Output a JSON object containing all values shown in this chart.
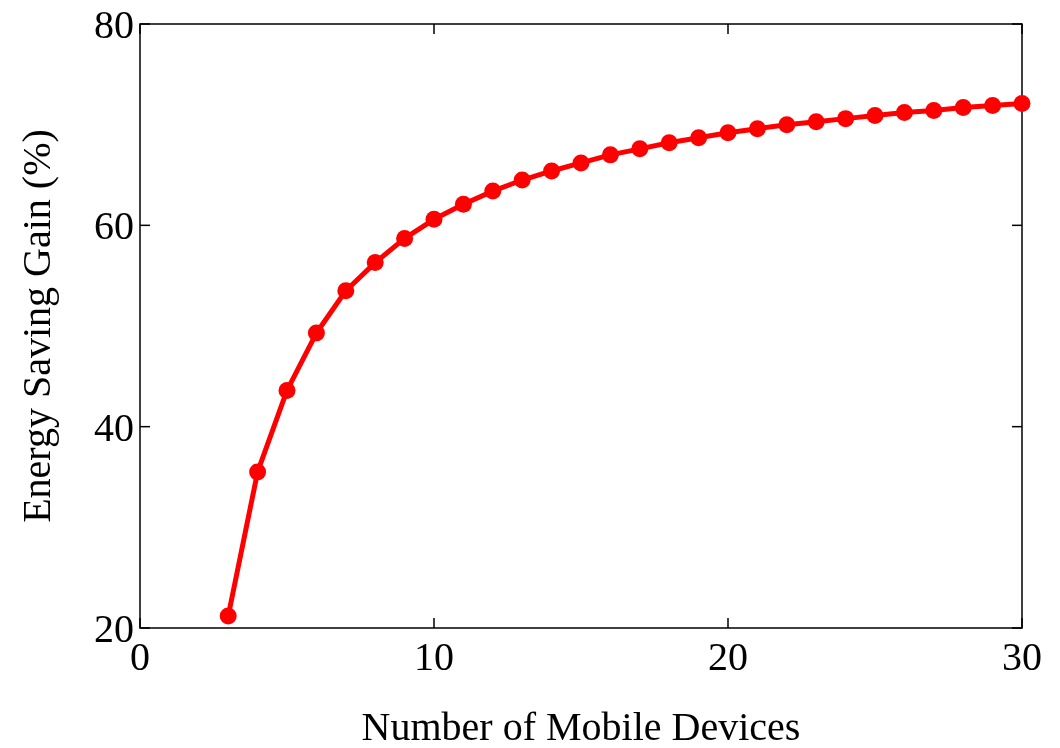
{
  "chart_data": {
    "type": "line",
    "xlabel": "Number of Mobile Devices",
    "ylabel": "Energy Saving Gain (%)",
    "x": [
      3,
      4,
      5,
      6,
      7,
      8,
      9,
      10,
      11,
      12,
      13,
      14,
      15,
      16,
      17,
      18,
      19,
      20,
      21,
      22,
      23,
      24,
      25,
      26,
      27,
      28,
      29,
      30
    ],
    "series": [
      {
        "color": "#ff0000",
        "values": [
          21.2,
          35.5,
          43.6,
          49.3,
          53.5,
          56.3,
          58.7,
          60.6,
          62.1,
          63.4,
          64.5,
          65.4,
          66.2,
          67.0,
          67.6,
          68.2,
          68.7,
          69.2,
          69.6,
          70.0,
          70.3,
          70.6,
          70.9,
          71.2,
          71.4,
          71.7,
          71.9,
          72.1
        ]
      }
    ],
    "xlim": [
      0,
      30
    ],
    "xticks": [
      0,
      10,
      20,
      30
    ],
    "ylim": [
      20,
      80
    ],
    "yticks": [
      20,
      40,
      60,
      80
    ],
    "marker": "circle",
    "line_style": "solid",
    "grid": false
  }
}
